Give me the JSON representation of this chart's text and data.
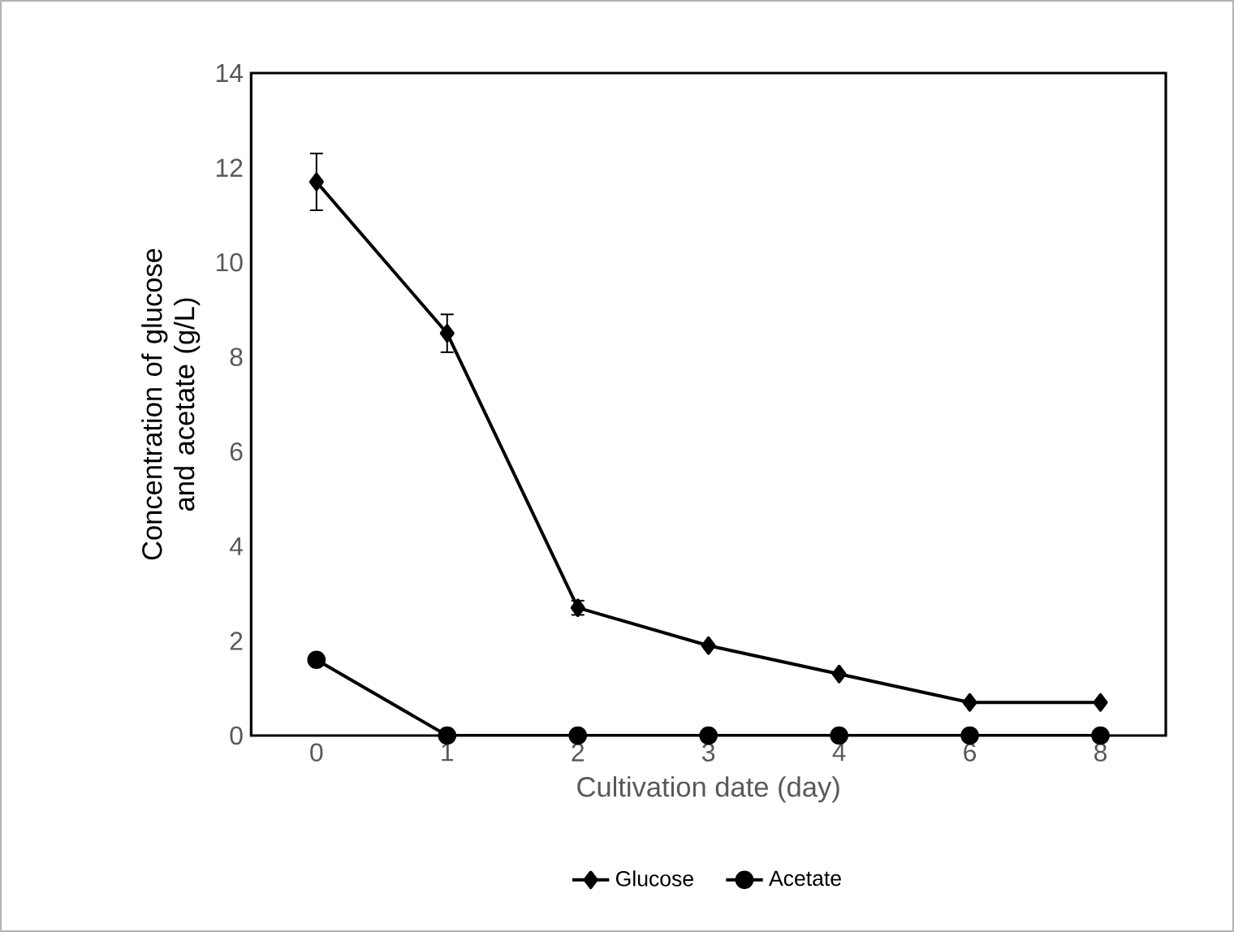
{
  "chart_data": {
    "type": "line",
    "xlabel": "Cultivation date (day)",
    "ylabel": "Concentration of glucose and acetate (g/L)",
    "categories": [
      "0",
      "1",
      "2",
      "3",
      "4",
      "6",
      "8"
    ],
    "series": [
      {
        "name": "Glucose",
        "color": "#000000",
        "marker": "diamond",
        "values": [
          11.7,
          8.5,
          2.7,
          1.9,
          1.3,
          0.7,
          0.7
        ],
        "errors": [
          0.6,
          0.4,
          0.15,
          null,
          null,
          null,
          null
        ]
      },
      {
        "name": "Acetate",
        "color": "#000000",
        "marker": "circle",
        "values": [
          1.6,
          0,
          0,
          0,
          0,
          0,
          0
        ]
      }
    ],
    "ylim": [
      0,
      14
    ],
    "yticks": [
      0,
      2,
      4,
      6,
      8,
      10,
      12,
      14
    ],
    "grid": false,
    "legend": "bottom",
    "line_style": "solid"
  }
}
